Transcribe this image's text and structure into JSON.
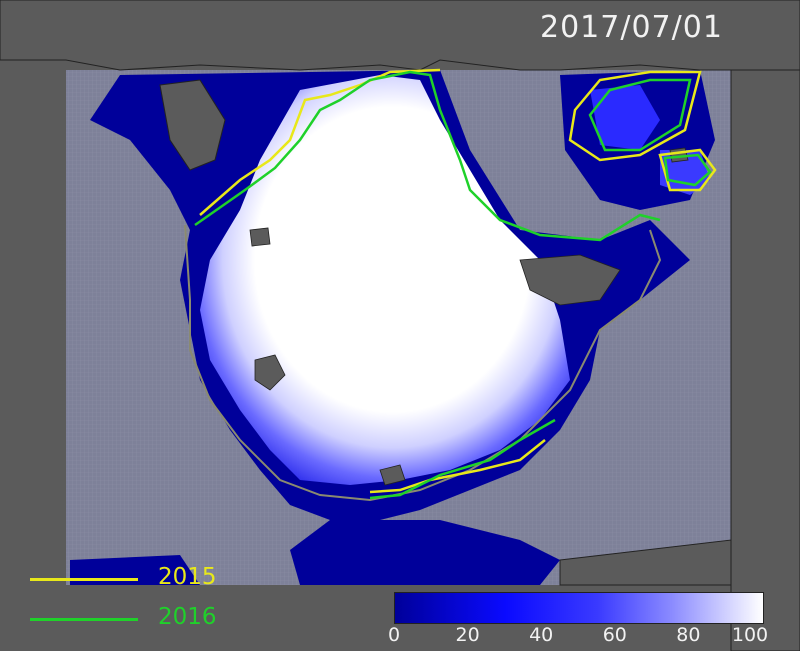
{
  "date_label": "2017/07/01",
  "legend": {
    "lines": [
      {
        "year": "2015",
        "color": "#e8e81a"
      },
      {
        "year": "2016",
        "color": "#1fd12a"
      }
    ]
  },
  "colorbar": {
    "min": 0,
    "max": 100,
    "ticks": [
      "0",
      "20",
      "40",
      "60",
      "80",
      "100"
    ],
    "colors": [
      "#00009a",
      "#0a0aff",
      "#6060ff",
      "#b0b0ff",
      "#ffffff"
    ]
  },
  "colors": {
    "land": "#5b5b5b",
    "open_water": "#00009a",
    "grid_region": "#7e8199",
    "ice_center": "#ffffff",
    "coast": "#222222",
    "climatology_outline": "#8a8a70"
  }
}
